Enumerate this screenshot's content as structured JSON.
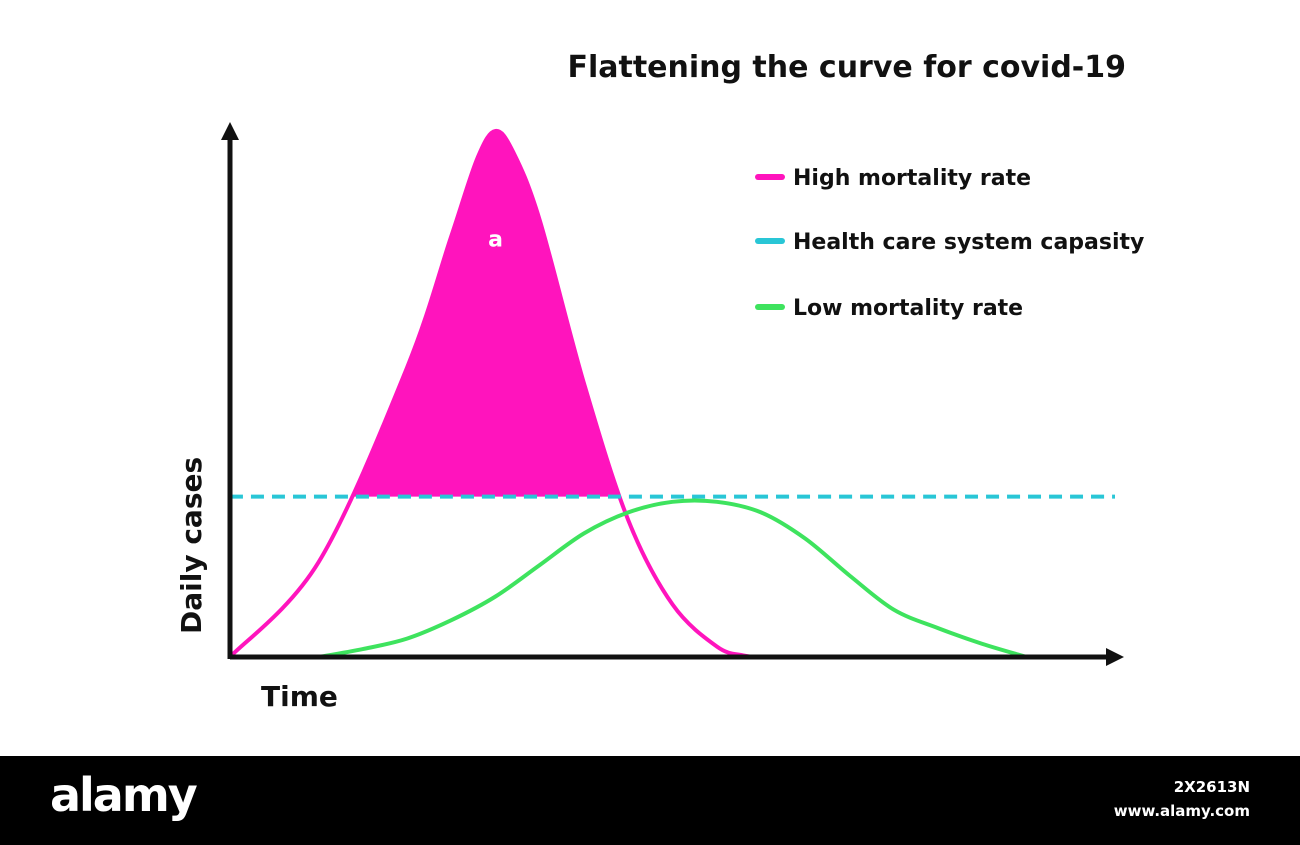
{
  "chart_data": {
    "type": "line",
    "title": "Flattening the curve for covid-19",
    "xlabel": "Time",
    "ylabel": "Daily cases",
    "grid": false,
    "legend_position": "top-right",
    "axes": {
      "x_ticks": false,
      "y_ticks": false
    },
    "series": [
      {
        "name": "High mortality rate",
        "color": "#ff14bd",
        "style": "solid",
        "fill_above_capacity": true,
        "x": [
          0,
          10,
          20,
          25,
          28,
          30,
          32,
          35,
          40,
          45,
          50,
          55,
          58,
          60
        ],
        "y": [
          0,
          18,
          55,
          80,
          95,
          100,
          96,
          83,
          52,
          26,
          10,
          2,
          0.3,
          0
        ]
      },
      {
        "name": "Health care system capasity",
        "color": "#29c6d6",
        "style": "dashed",
        "x": [
          0,
          100
        ],
        "y": [
          30.5,
          30.5
        ]
      },
      {
        "name": "Low mortality rate",
        "color": "#3ee35e",
        "style": "solid",
        "x": [
          10,
          15,
          20,
          25,
          30,
          35,
          40,
          45,
          50,
          55,
          60,
          65,
          70,
          75,
          80,
          85,
          90
        ],
        "y": [
          0,
          1.5,
          3.5,
          7,
          11.5,
          17.5,
          23.5,
          27.5,
          29.5,
          29.5,
          27.5,
          22.5,
          15.5,
          9,
          5.5,
          2.5,
          0
        ]
      }
    ],
    "xlim": [
      0,
      100
    ],
    "ylim": [
      0,
      100
    ],
    "annotations": [
      {
        "text": "a",
        "color": "#ffffff",
        "x": 30,
        "y": 78
      }
    ]
  },
  "footer": {
    "brand": "alamy",
    "image_id": "2X2613N",
    "url": "www.alamy.com",
    "background": "#000000"
  }
}
